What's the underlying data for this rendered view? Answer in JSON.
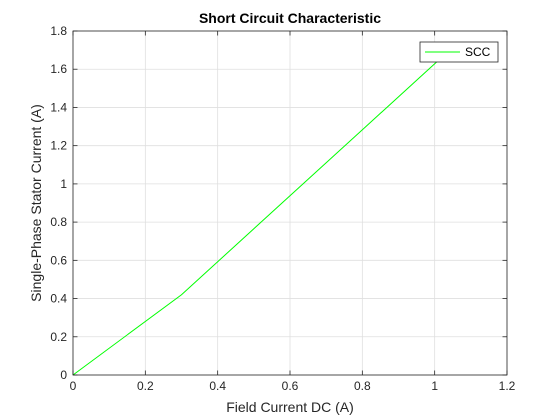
{
  "chart_data": {
    "type": "line",
    "title": "Short Circuit Characteristic",
    "xlabel": "Field Current DC (A)",
    "ylabel": "Single-Phase Stator Current (A)",
    "xlim": [
      0,
      1.2
    ],
    "ylim": [
      0,
      1.8
    ],
    "xticks": [
      0,
      0.2,
      0.4,
      0.6,
      0.8,
      1,
      1.2
    ],
    "yticks": [
      0,
      0.2,
      0.4,
      0.6,
      0.8,
      1,
      1.2,
      1.4,
      1.6,
      1.8
    ],
    "xtick_labels": [
      "0",
      "0.2",
      "0.4",
      "0.6",
      "0.8",
      "1",
      "1.2"
    ],
    "ytick_labels": [
      "0",
      "0.2",
      "0.4",
      "0.6",
      "0.8",
      "1",
      "1.2",
      "1.4",
      "1.6",
      "1.8"
    ],
    "grid": true,
    "legend": {
      "location": "top-right"
    },
    "series": [
      {
        "name": "SCC",
        "color": "#00ff00",
        "x": [
          0,
          0.3,
          1.03
        ],
        "y": [
          0,
          0.42,
          1.68
        ]
      }
    ]
  }
}
